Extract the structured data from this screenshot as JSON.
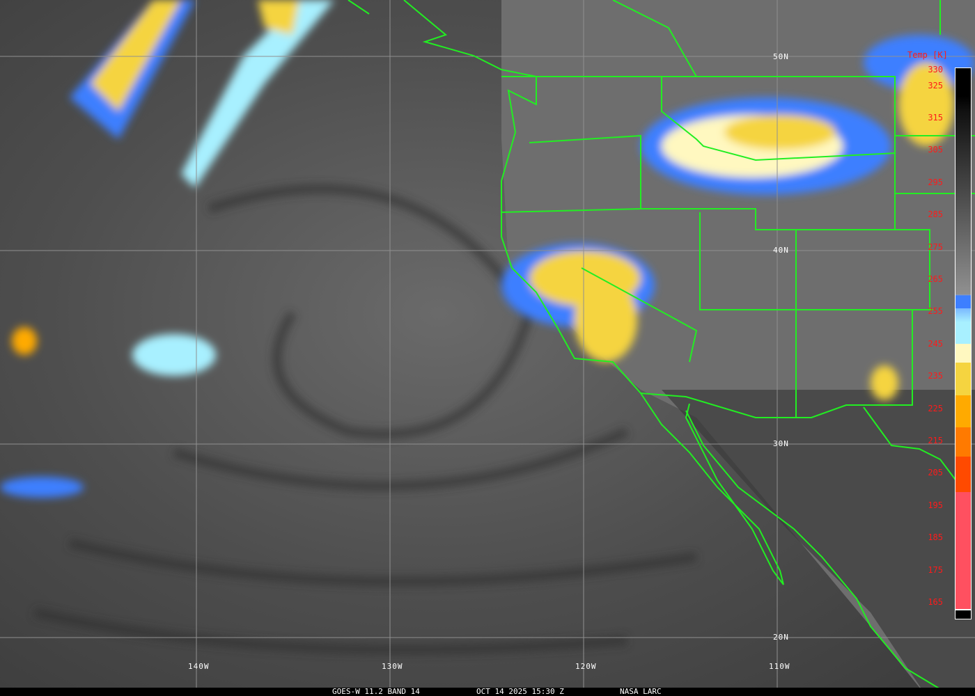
{
  "caption": {
    "satellite": "GOES-W 11.2 BAND 14",
    "datetime": "OCT 14 2025 15:30 Z",
    "source": "NASA LARC"
  },
  "grid_labels": {
    "lat": [
      "50N",
      "40N",
      "30N",
      "20N"
    ],
    "lon": [
      "140W",
      "130W",
      "120W",
      "110W"
    ]
  },
  "colorbar": {
    "title": "Temp [K]",
    "ticks": [
      "330",
      "325",
      "315",
      "305",
      "295",
      "285",
      "275",
      "265",
      "255",
      "245",
      "235",
      "225",
      "215",
      "205",
      "195",
      "185",
      "175",
      "165"
    ],
    "colors": {
      "warm_top": "#000000",
      "gray_bottom": "#a0a0a0",
      "blue": "#3d7fff",
      "light_blue": "#a8f0ff",
      "pale_yellow": "#fff8c0",
      "yellow": "#f5d440",
      "orange": "#ffaa00",
      "dark_orange": "#ff7a00",
      "red_orange": "#ff4a00",
      "pink": "#ff5060"
    }
  },
  "colors": {
    "borders": "#22ee22",
    "grid": "#909090",
    "labels": "#ffffff",
    "colorbar_labels": "#ff1a1a"
  }
}
